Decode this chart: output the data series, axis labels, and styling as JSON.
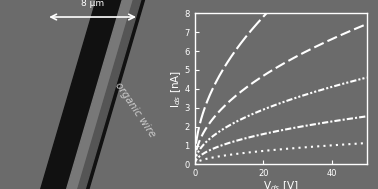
{
  "background_color": "#6b6b6b",
  "left_panel": {
    "bg_color": "#4a4a4a",
    "text": "organic wire",
    "text_color": "#cccccc",
    "scalebar_text": "8 μm"
  },
  "right_panel": {
    "plot_bg": "#6b6b6b",
    "xlabel": "V$_{ds}$ [V]",
    "ylabel": "I$_{ds}$ [nA]",
    "xlim": [
      0,
      50
    ],
    "ylim": [
      0,
      8
    ],
    "xticks": [
      0,
      20,
      40
    ],
    "yticks": [
      0,
      1,
      2,
      3,
      4,
      5,
      6,
      7,
      8
    ],
    "curve_scales": [
      0.16,
      0.36,
      0.65,
      1.05,
      1.75
    ],
    "line_color": "white",
    "line_width": 1.5
  }
}
